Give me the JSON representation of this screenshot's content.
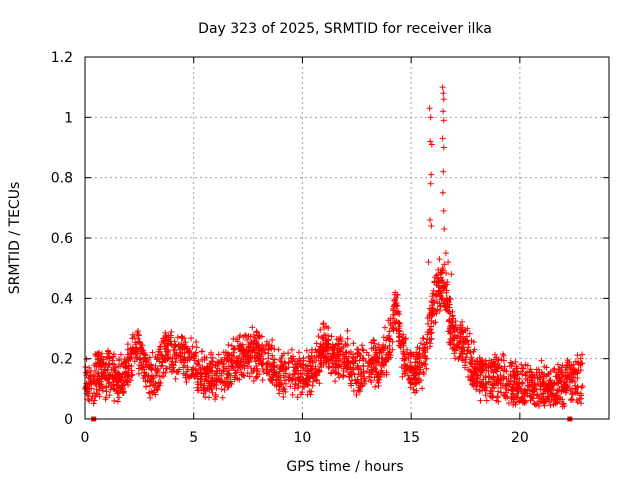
{
  "chart_data": {
    "type": "scatter",
    "title": "Day 323 of 2025, SRMTID for receiver ilka",
    "xlabel": "GPS time / hours",
    "ylabel": "SRMTID / TECUs",
    "xlim": [
      0,
      24.1
    ],
    "ylim": [
      0,
      1.2
    ],
    "x_ticks": [
      0,
      5,
      10,
      15,
      20
    ],
    "x_tick_labels": [
      "0",
      "5",
      "10",
      "15",
      "20"
    ],
    "y_ticks": [
      0,
      0.2,
      0.4,
      0.6,
      0.8,
      1.0,
      1.2
    ],
    "y_tick_labels": [
      "0",
      "0.2",
      "0.4",
      "0.6",
      "0.8",
      "1",
      "1.2"
    ],
    "grid": true,
    "marker": "plus",
    "color": "#ff0000",
    "series": [
      {
        "name": "SRMTID",
        "baseline_profile": [
          [
            0.0,
            0.11
          ],
          [
            0.5,
            0.14
          ],
          [
            1.0,
            0.15
          ],
          [
            1.5,
            0.13
          ],
          [
            2.0,
            0.17
          ],
          [
            2.4,
            0.25
          ],
          [
            2.8,
            0.15
          ],
          [
            3.2,
            0.13
          ],
          [
            3.6,
            0.2
          ],
          [
            4.2,
            0.22
          ],
          [
            4.6,
            0.2
          ],
          [
            5.0,
            0.18
          ],
          [
            5.5,
            0.15
          ],
          [
            6.0,
            0.14
          ],
          [
            6.5,
            0.15
          ],
          [
            7.0,
            0.2
          ],
          [
            7.5,
            0.22
          ],
          [
            8.0,
            0.21
          ],
          [
            8.5,
            0.19
          ],
          [
            9.0,
            0.15
          ],
          [
            9.5,
            0.15
          ],
          [
            10.0,
            0.15
          ],
          [
            10.5,
            0.15
          ],
          [
            11.0,
            0.25
          ],
          [
            11.5,
            0.2
          ],
          [
            12.0,
            0.22
          ],
          [
            12.5,
            0.15
          ],
          [
            13.0,
            0.2
          ],
          [
            13.5,
            0.18
          ],
          [
            14.0,
            0.25
          ],
          [
            14.3,
            0.38
          ],
          [
            14.6,
            0.22
          ],
          [
            15.0,
            0.15
          ],
          [
            15.5,
            0.18
          ],
          [
            15.8,
            0.28
          ],
          [
            16.2,
            0.42
          ],
          [
            16.5,
            0.45
          ],
          [
            16.8,
            0.32
          ],
          [
            17.0,
            0.28
          ],
          [
            17.5,
            0.24
          ],
          [
            18.0,
            0.15
          ],
          [
            18.5,
            0.13
          ],
          [
            19.0,
            0.14
          ],
          [
            19.5,
            0.13
          ],
          [
            20.0,
            0.1
          ],
          [
            20.5,
            0.12
          ],
          [
            21.0,
            0.11
          ],
          [
            21.5,
            0.1
          ],
          [
            22.0,
            0.11
          ],
          [
            22.5,
            0.13
          ],
          [
            22.8,
            0.13
          ]
        ],
        "peaks": [
          [
            15.85,
            1.03
          ],
          [
            15.9,
            1.0
          ],
          [
            15.88,
            0.92
          ],
          [
            15.95,
            0.91
          ],
          [
            15.92,
            0.81
          ],
          [
            15.9,
            0.78
          ],
          [
            15.87,
            0.66
          ],
          [
            15.93,
            0.64
          ],
          [
            16.45,
            1.1
          ],
          [
            16.48,
            1.08
          ],
          [
            16.5,
            1.06
          ],
          [
            16.47,
            1.02
          ],
          [
            16.5,
            0.99
          ],
          [
            16.45,
            0.93
          ],
          [
            16.5,
            0.9
          ],
          [
            16.48,
            0.82
          ],
          [
            16.46,
            0.75
          ],
          [
            16.5,
            0.69
          ],
          [
            16.52,
            0.63
          ],
          [
            16.6,
            0.55
          ],
          [
            16.7,
            0.52
          ],
          [
            16.3,
            0.53
          ],
          [
            16.1,
            0.47
          ],
          [
            15.8,
            0.52
          ],
          [
            16.85,
            0.48
          ]
        ],
        "zero_points": [
          [
            0.4,
            0.0
          ],
          [
            22.3,
            0.0
          ]
        ],
        "x_range": [
          0.0,
          22.9
        ],
        "point_count": 2600
      }
    ]
  }
}
